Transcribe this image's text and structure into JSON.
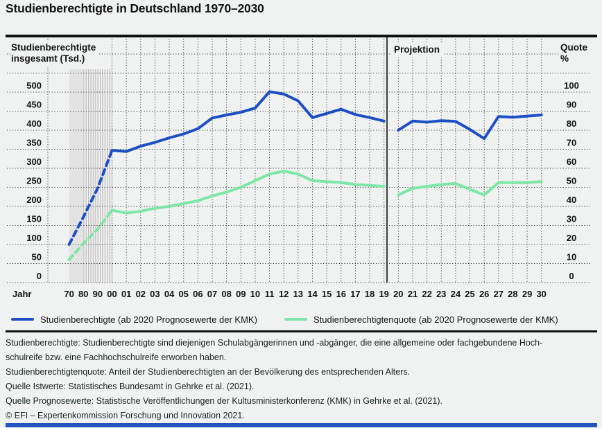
{
  "title": "Studienberechtigte in Deutschland 1970–2030",
  "colors": {
    "line_blue": "#1d4fc4",
    "line_green": "#7de7a5",
    "bottom_bar_blue": "#2353c0",
    "background": "#eff2f0",
    "band_fill": "#e3e3e3",
    "band_hatch_bg": "#efefef",
    "band_hatch_line": "#b5b5b5",
    "grid_dot": "#3a3a3a",
    "rule_black": "#101010",
    "text": "#131313"
  },
  "chart": {
    "left_axis_title_line1": "Studienberechtigte",
    "left_axis_title_line2": "insgesamt (Tsd.)",
    "projection_label": "Projektion",
    "right_axis_title_line1": "Quote",
    "right_axis_title_line2": "%",
    "x_axis_label": "Jahr"
  },
  "chart_data": {
    "type": "line",
    "title": "Studienberechtigte in Deutschland 1970–2030",
    "categories": [
      "70",
      "80",
      "90",
      "00",
      "01",
      "02",
      "03",
      "04",
      "05",
      "06",
      "07",
      "08",
      "09",
      "10",
      "11",
      "12",
      "13",
      "14",
      "15",
      "16",
      "17",
      "18",
      "19",
      "20",
      "21",
      "22",
      "23",
      "24",
      "25",
      "26",
      "27",
      "28",
      "29",
      "30"
    ],
    "series": [
      {
        "name": "Studienberechtigte (ab 2020 Prognosewerte der KMK)",
        "axis": "left",
        "unit": "Tsd.",
        "color": "#1d4fc4",
        "values": [
          100,
          172,
          248,
          347,
          344,
          358,
          368,
          380,
          390,
          404,
          432,
          440,
          447,
          458,
          501,
          495,
          477,
          433,
          444,
          455,
          441,
          433,
          424,
          400,
          424,
          421,
          425,
          423,
          402,
          378,
          436,
          434,
          437,
          440
        ]
      },
      {
        "name": "Studienberechtigtenquote (ab 2020 Prognosewerte der KMK)",
        "axis": "right",
        "unit": "%",
        "color": "#7de7a5",
        "values": [
          12,
          20.5,
          28,
          38,
          36.5,
          37.5,
          39,
          40,
          41.5,
          43,
          45.5,
          47.5,
          50,
          53.5,
          57,
          58.5,
          57,
          53.5,
          53,
          52.5,
          51.5,
          51,
          50.5,
          46,
          49.5,
          50.5,
          51.5,
          52,
          49,
          46,
          52.5,
          52.5,
          52.5,
          53
        ]
      }
    ],
    "left_axis": {
      "label": "Studienberechtigte insgesamt (Tsd.)",
      "min": 0,
      "max": 500,
      "ticks": [
        500,
        450,
        400,
        350,
        300,
        250,
        200,
        150,
        100,
        50,
        0
      ]
    },
    "right_axis": {
      "label": "Quote %",
      "min": 0,
      "max": 100,
      "ticks": [
        100,
        90,
        80,
        70,
        60,
        50,
        40,
        30,
        20,
        10,
        0
      ]
    },
    "grid": {
      "horizontal_levels_left_scale": [
        0,
        50,
        100,
        150,
        200,
        250,
        300,
        350,
        400,
        450,
        500,
        550,
        600
      ],
      "vertical_per_category_from": "00"
    },
    "dashed_until_category": "00",
    "projection_from_category": "20",
    "divider_between": [
      "19",
      "20"
    ],
    "highlight_band": {
      "from": "70",
      "to": "00",
      "style": "gray-hatched"
    }
  },
  "legend": {
    "items": [
      {
        "label": "Studienberechtigte (ab 2020 Prognosewerte der KMK)",
        "color": "#1d4fc4"
      },
      {
        "label": "Studienberechtigtenquote (ab 2020 Prognosewerte der KMK)",
        "color": "#7de7a5"
      }
    ]
  },
  "footer": {
    "lines": [
      "Studienberechtigte: Studienberechtigte sind diejenigen Schulabgängerinnen und -abgänger, die eine allgemeine oder fachgebundene Hoch-",
      "schulreife bzw. eine Fachhochschulreife erworben haben.",
      "Studienberechtigtenquote: Anteil der Studienberechtigten an der Bevölkerung des entsprechenden Alters.",
      "Quelle Istwerte: Statistisches Bundesamt in Gehrke et al. (2021).",
      "Quelle Prognosewerte: Statistische Veröffentlichungen der Kultusministerkonferenz (KMK) in Gehrke et al. (2021).",
      "© EFI – Expertenkommission Forschung und Innovation 2021."
    ]
  }
}
